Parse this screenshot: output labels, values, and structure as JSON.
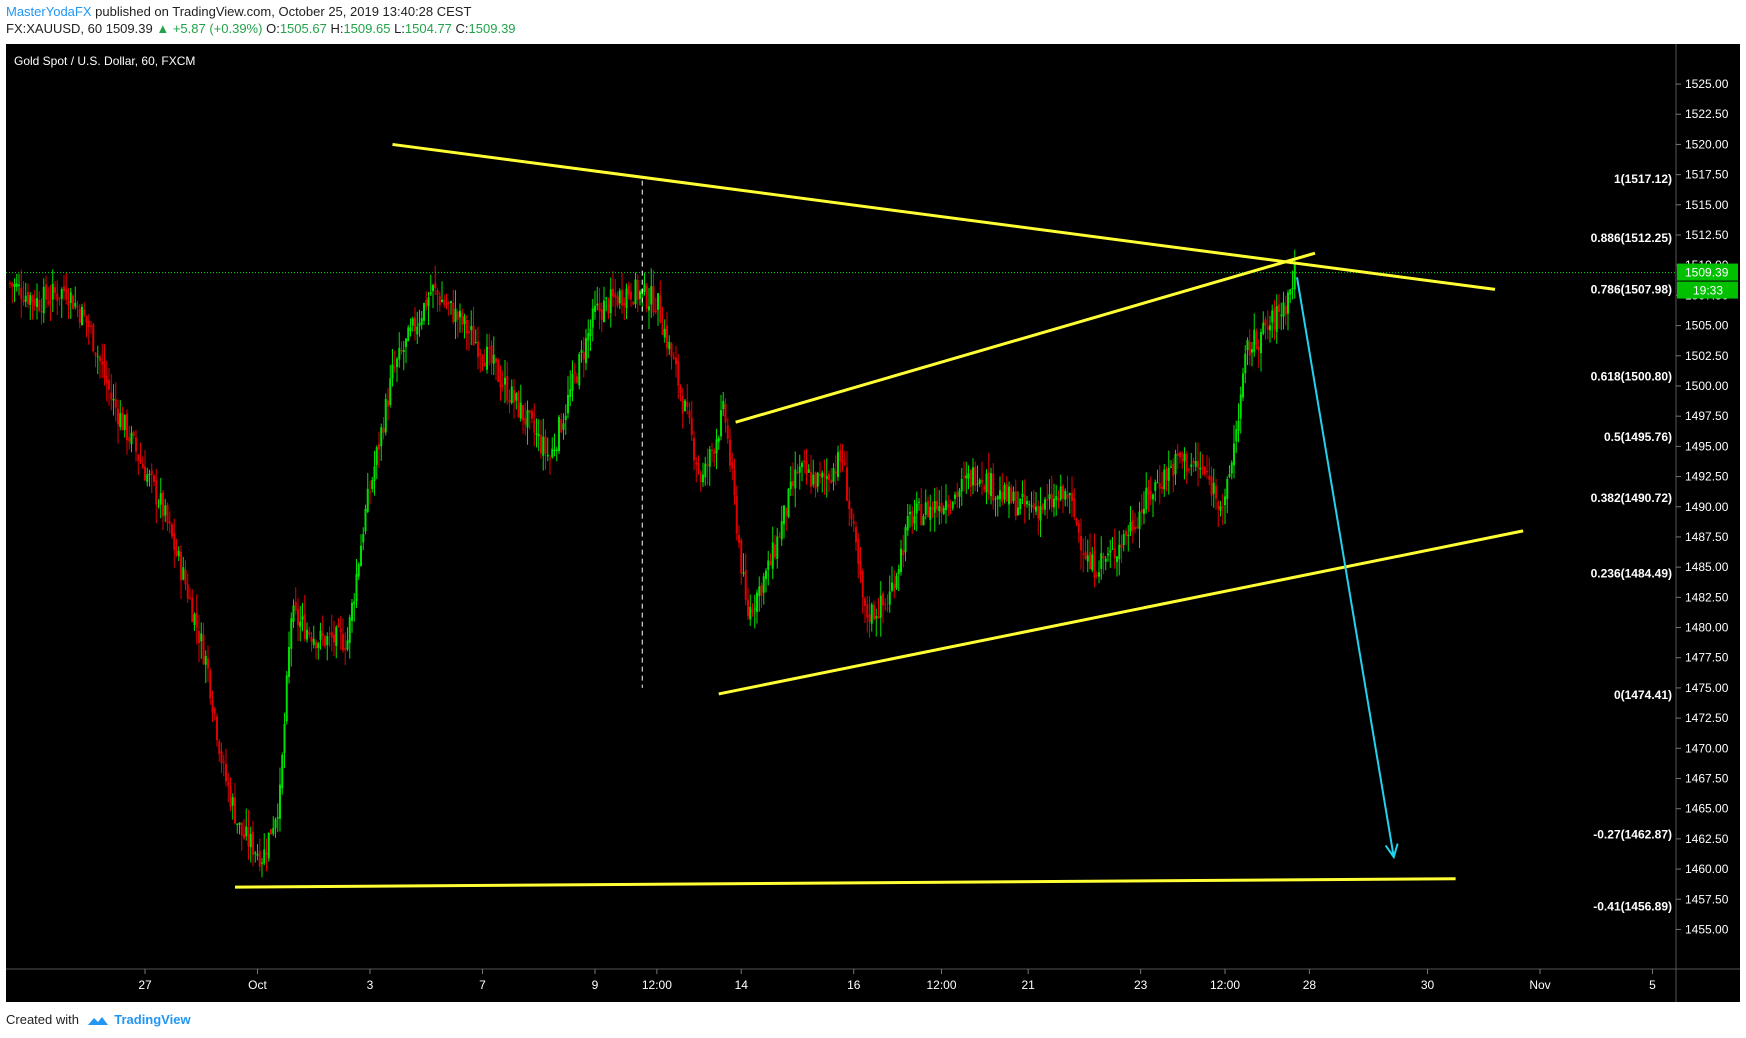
{
  "header": {
    "author": "MasterYodaFX",
    "published_text": "published on TradingView.com, October 25, 2019 13:40:28 CEST",
    "symbol": "FX:XAUUSD, 60",
    "last": "1509.39",
    "change": "▲ +5.87 (+0.39%)",
    "o_label": "O:",
    "o_value": "1505.67",
    "h_label": "H:",
    "h_value": "1509.65",
    "l_label": "L:",
    "l_value": "1504.77",
    "c_label": "C:",
    "c_value": "1509.39"
  },
  "footer": {
    "created_with": "Created with",
    "brand": "TradingView"
  },
  "colors": {
    "background": "#000000",
    "bull": "#00e000",
    "bear": "#e00000",
    "trendline": "#ffff33",
    "projection": "#22d3ee",
    "price_tag": "#00c000",
    "axis_text": "#ffffff"
  },
  "chart_data": {
    "type": "candlestick",
    "title": "Gold Spot / U.S. Dollar, 60, FXCM",
    "ylim": [
      1453,
      1527
    ],
    "y_ticks": [
      "1525.00",
      "1522.50",
      "1520.00",
      "1517.50",
      "1515.00",
      "1512.50",
      "1510.00",
      "1507.50",
      "1505.00",
      "1502.50",
      "1500.00",
      "1497.50",
      "1495.00",
      "1492.50",
      "1490.00",
      "1487.50",
      "1485.00",
      "1482.50",
      "1480.00",
      "1477.50",
      "1475.00",
      "1472.50",
      "1470.00",
      "1467.50",
      "1465.00",
      "1462.50",
      "1460.00",
      "1457.50",
      "1455.00"
    ],
    "x_ticks": [
      {
        "label": "27",
        "t": 1.2
      },
      {
        "label": "Oct",
        "t": 2.2
      },
      {
        "label": "3",
        "t": 3.2
      },
      {
        "label": "7",
        "t": 4.2
      },
      {
        "label": "9",
        "t": 5.2
      },
      {
        "label": "12:00",
        "t": 5.75
      },
      {
        "label": "14",
        "t": 6.5
      },
      {
        "label": "16",
        "t": 7.5
      },
      {
        "label": "12:00",
        "t": 8.28
      },
      {
        "label": "21",
        "t": 9.05
      },
      {
        "label": "23",
        "t": 10.05
      },
      {
        "label": "12:00",
        "t": 10.8
      },
      {
        "label": "28",
        "t": 11.55
      },
      {
        "label": "30",
        "t": 12.6
      },
      {
        "label": "Nov",
        "t": 13.6
      },
      {
        "label": "5",
        "t": 14.6
      }
    ],
    "last_price": {
      "value": 1509.39,
      "label": "1509.39",
      "countdown": "19:33"
    },
    "fib_levels": [
      {
        "label": "1(1517.12)",
        "value": 1517.12
      },
      {
        "label": "0.886(1512.25)",
        "value": 1512.25
      },
      {
        "label": "0.786(1507.98)",
        "value": 1507.98
      },
      {
        "label": "0.618(1500.80)",
        "value": 1500.8
      },
      {
        "label": "0.5(1495.76)",
        "value": 1495.76
      },
      {
        "label": "0.382(1490.72)",
        "value": 1490.72
      },
      {
        "label": "0.236(1484.49)",
        "value": 1484.49
      },
      {
        "label": "0(1474.41)",
        "value": 1474.41
      },
      {
        "label": "-0.27(1462.87)",
        "value": 1462.87
      },
      {
        "label": "-0.41(1456.89)",
        "value": 1456.89
      }
    ],
    "price_path": [
      [
        0.0,
        1508.5
      ],
      [
        0.25,
        1507
      ],
      [
        0.5,
        1508
      ],
      [
        0.7,
        1505
      ],
      [
        0.9,
        1499
      ],
      [
        1.15,
        1494
      ],
      [
        1.35,
        1490
      ],
      [
        1.55,
        1484
      ],
      [
        1.75,
        1477
      ],
      [
        1.9,
        1468
      ],
      [
        2.05,
        1463
      ],
      [
        2.25,
        1461
      ],
      [
        2.4,
        1466
      ],
      [
        2.5,
        1481
      ],
      [
        2.75,
        1479
      ],
      [
        3.0,
        1479
      ],
      [
        3.15,
        1489
      ],
      [
        3.4,
        1501
      ],
      [
        3.6,
        1505
      ],
      [
        3.75,
        1508
      ],
      [
        3.95,
        1506
      ],
      [
        4.2,
        1503
      ],
      [
        4.4,
        1500
      ],
      [
        4.6,
        1497
      ],
      [
        4.8,
        1494
      ],
      [
        5.0,
        1500
      ],
      [
        5.2,
        1506
      ],
      [
        5.5,
        1508
      ],
      [
        5.75,
        1507
      ],
      [
        5.95,
        1500
      ],
      [
        6.15,
        1492
      ],
      [
        6.35,
        1498
      ],
      [
        6.55,
        1481
      ],
      [
        6.75,
        1485
      ],
      [
        7.0,
        1493
      ],
      [
        7.2,
        1492
      ],
      [
        7.4,
        1494
      ],
      [
        7.6,
        1481
      ],
      [
        7.8,
        1482
      ],
      [
        8.0,
        1489
      ],
      [
        8.2,
        1490
      ],
      [
        8.4,
        1491
      ],
      [
        8.6,
        1493
      ],
      [
        8.8,
        1491
      ],
      [
        9.0,
        1490
      ],
      [
        9.2,
        1490
      ],
      [
        9.4,
        1491
      ],
      [
        9.6,
        1485
      ],
      [
        9.8,
        1486
      ],
      [
        10.0,
        1489
      ],
      [
        10.2,
        1492
      ],
      [
        10.4,
        1494
      ],
      [
        10.6,
        1493
      ],
      [
        10.8,
        1490
      ],
      [
        11.0,
        1503
      ],
      [
        11.2,
        1505
      ],
      [
        11.35,
        1507
      ],
      [
        11.42,
        1509.4
      ]
    ],
    "drawings": {
      "upper_trendline": [
        [
          3.4,
          1520
        ],
        [
          13.2,
          1508
        ]
      ],
      "channel_top": [
        [
          6.45,
          1497
        ],
        [
          11.6,
          1511
        ]
      ],
      "channel_bottom": [
        [
          6.3,
          1474.5
        ],
        [
          13.45,
          1488
        ]
      ],
      "base_line": [
        [
          2.0,
          1458.5
        ],
        [
          12.85,
          1459.2
        ]
      ],
      "projection_arrow": [
        [
          11.44,
          1509
        ],
        [
          12.3,
          1461
        ]
      ],
      "vertical_marker": {
        "t": 5.62,
        "from": 1517,
        "to": 1475
      }
    }
  }
}
